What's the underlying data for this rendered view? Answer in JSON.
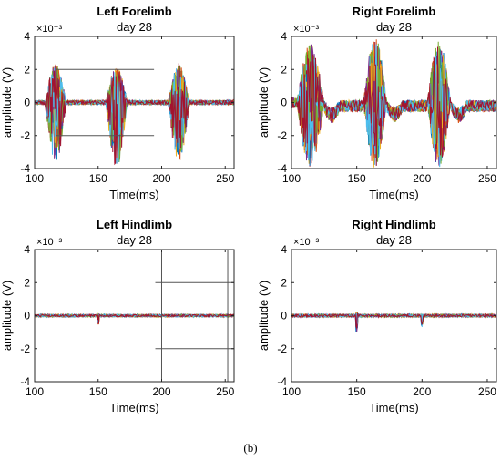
{
  "caption": "(b)",
  "chart_data": [
    {
      "type": "line",
      "title": "Left Forelimb",
      "subtitle": "day 28",
      "xlabel": "Time(ms)",
      "ylabel": "amplitude (V)",
      "exponent_label": "×10⁻³",
      "xlim": [
        100,
        257
      ],
      "ylim": [
        -4,
        4
      ],
      "xticks": [
        "100",
        "150",
        "200",
        "250"
      ],
      "yticks": [
        "-4",
        "-2",
        "0",
        "2",
        "4"
      ],
      "grid": false,
      "overlay_lines": [
        {
          "y": 2,
          "x": [
            117,
            194
          ]
        },
        {
          "y": -2,
          "x": [
            117,
            194
          ]
        }
      ],
      "bursts": [
        {
          "x": [
            108,
            125
          ],
          "max": 2.3,
          "min": -3.6
        },
        {
          "x": [
            156,
            173
          ],
          "max": 2.2,
          "min": -3.9
        },
        {
          "x": [
            205,
            222
          ],
          "max": 2.3,
          "min": -3.5
        }
      ],
      "baseline_noise": 0.12
    },
    {
      "type": "line",
      "title": "Right Forelimb",
      "subtitle": "day 28",
      "xlabel": "Time(ms)",
      "ylabel": "amplitude (V)",
      "exponent_label": "×10⁻³",
      "xlim": [
        100,
        257
      ],
      "ylim": [
        -4,
        4
      ],
      "xticks": [
        "100",
        "150",
        "200",
        "250"
      ],
      "yticks": [
        "-4",
        "-2",
        "0",
        "2",
        "4"
      ],
      "grid": false,
      "overlay_lines": [],
      "bursts": [
        {
          "x": [
            104,
            125
          ],
          "max": 3.6,
          "min": -3.9
        },
        {
          "x": [
            155,
            173
          ],
          "max": 4.0,
          "min": -4.0
        },
        {
          "x": [
            204,
            222
          ],
          "max": 3.8,
          "min": -4.0
        }
      ],
      "baseline_noise": 0.35,
      "baseline_offset": -0.6
    },
    {
      "type": "line",
      "title": "Left Hindlimb",
      "subtitle": "day 28",
      "xlabel": "Time(ms)",
      "ylabel": "amplitude (V)",
      "exponent_label": "×10⁻³",
      "xlim": [
        100,
        257
      ],
      "ylim": [
        -4,
        4
      ],
      "xticks": [
        "100",
        "150",
        "200",
        "250"
      ],
      "yticks": [
        "-4",
        "-2",
        "0",
        "2",
        "4"
      ],
      "grid": false,
      "overlay_lines": [
        {
          "y": 2,
          "x": [
            195,
            257
          ]
        },
        {
          "y": -2,
          "x": [
            195,
            257
          ]
        }
      ],
      "overlay_vlines": [
        200,
        252
      ],
      "spikes": [
        {
          "x": 150,
          "min": -0.5,
          "max": 0.1
        }
      ],
      "baseline_noise": 0.07
    },
    {
      "type": "line",
      "title": "Right Hindlimb",
      "subtitle": "day 28",
      "xlabel": "Time(ms)",
      "ylabel": "amplitude (V)",
      "exponent_label": "×10⁻³",
      "xlim": [
        100,
        257
      ],
      "ylim": [
        -4,
        4
      ],
      "xticks": [
        "100",
        "150",
        "200",
        "250"
      ],
      "yticks": [
        "-4",
        "-2",
        "0",
        "2",
        "4"
      ],
      "grid": false,
      "overlay_lines": [],
      "overlay_vlines": [],
      "spikes": [
        {
          "x": 150,
          "min": -1.0,
          "max": 0.2
        },
        {
          "x": 200,
          "min": -0.7,
          "max": 0.1
        }
      ],
      "baseline_noise": 0.08
    }
  ],
  "series_colors": [
    "#0072bd",
    "#d95319",
    "#edb120",
    "#7e2f8e",
    "#77ac30",
    "#4dbeee",
    "#a2142f"
  ]
}
